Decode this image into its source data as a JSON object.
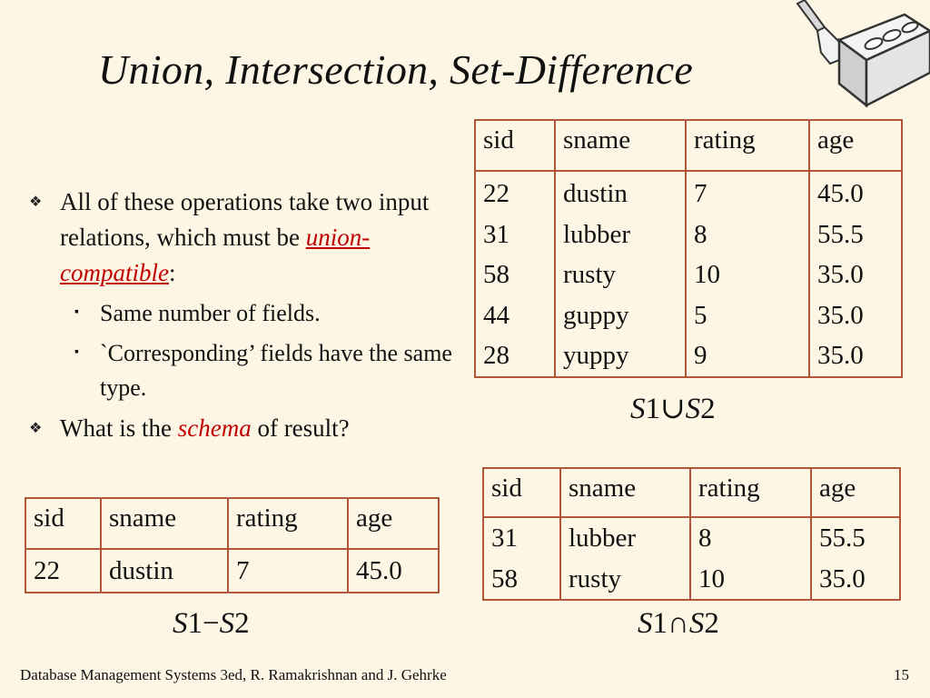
{
  "slide": {
    "title": "Union, Intersection, Set-Difference",
    "bullets": {
      "b1_prefix": "All of these operations take two input relations, which must be ",
      "b1_em": "union-compatible",
      "b1_suffix": ":",
      "sub1": "Same number of fields.",
      "sub2": "`Corresponding’ fields have the same type.",
      "b2_prefix": "What is the ",
      "b2_em": "schema",
      "b2_suffix": " of result?"
    },
    "union_table": {
      "headers": [
        "sid",
        "sname",
        "rating",
        "age"
      ],
      "rows": [
        [
          "22",
          "dustin",
          "7",
          "45.0"
        ],
        [
          "31",
          "lubber",
          "8",
          "55.5"
        ],
        [
          "58",
          "rusty",
          "10",
          "35.0"
        ],
        [
          "44",
          "guppy",
          "5",
          "35.0"
        ],
        [
          "28",
          "yuppy",
          "9",
          "35.0"
        ]
      ],
      "expr": {
        "left": "S",
        "left_sub": "1",
        "op": "∪",
        "right": "S",
        "right_sub": "2"
      }
    },
    "intersection_table": {
      "headers": [
        "sid",
        "sname",
        "rating",
        "age"
      ],
      "rows": [
        [
          "31",
          "lubber",
          "8",
          "55.5"
        ],
        [
          "58",
          "rusty",
          "10",
          "35.0"
        ]
      ],
      "expr": {
        "left": "S",
        "left_sub": "1",
        "op": "∩",
        "right": "S",
        "right_sub": "2"
      }
    },
    "difference_table": {
      "headers": [
        "sid",
        "sname",
        "rating",
        "age"
      ],
      "rows": [
        [
          "22",
          "dustin",
          "7",
          "45.0"
        ]
      ],
      "expr": {
        "left": "S",
        "left_sub": "1",
        "op": "−",
        "right": "S",
        "right_sub": "2"
      }
    },
    "footer": "Database Management Systems 3ed,  R. Ramakrishnan and J. Gehrke",
    "page_number": "15",
    "logo_icon": "brick-and-trowel-icon"
  },
  "colors": {
    "background": "#fdf6e4",
    "table_border": "#b0563a",
    "emphasis": "#c00000"
  }
}
